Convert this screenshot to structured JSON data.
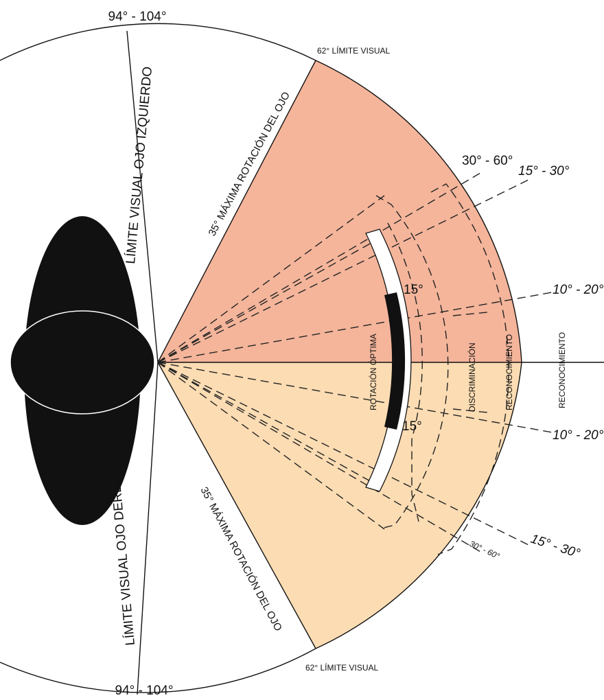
{
  "labels": {
    "top_range": "94° - 104°",
    "bottom_range": "94° - 104°",
    "top_limit": "62° LÍMITE VISUAL",
    "bottom_limit": "62° LÍMITE VISUAL",
    "left_eye_limit": "LÍMITE  VISUAL OJO IZQUIERDO",
    "right_eye_limit": "LÍMITE  VISUAL OJO DERECHO",
    "top_max_rotation": "35° MÁXIMA ROTACIÓN DEL OJO",
    "bottom_max_rotation": "35° MÁXIMA ROTACIÓN DEL OJO",
    "upper_30_60": "30° - 60°",
    "upper_15_30": "15° - 30°",
    "upper_10_20": "10° - 20°",
    "lower_10_20": "10° - 20°",
    "lower_15_30": "15° - 30°",
    "lower_30_60": "30° - 60°",
    "optimal_up": "15°",
    "optimal_down": "15°",
    "optimal_rotation": "ROTACIÓN ÓPTIMA",
    "discrimination": "DISCRIMINACIÓN",
    "recognition_inner": "RECONOCIMIENTO",
    "recognition_outer": "RECONOCIMIENTO"
  }
}
